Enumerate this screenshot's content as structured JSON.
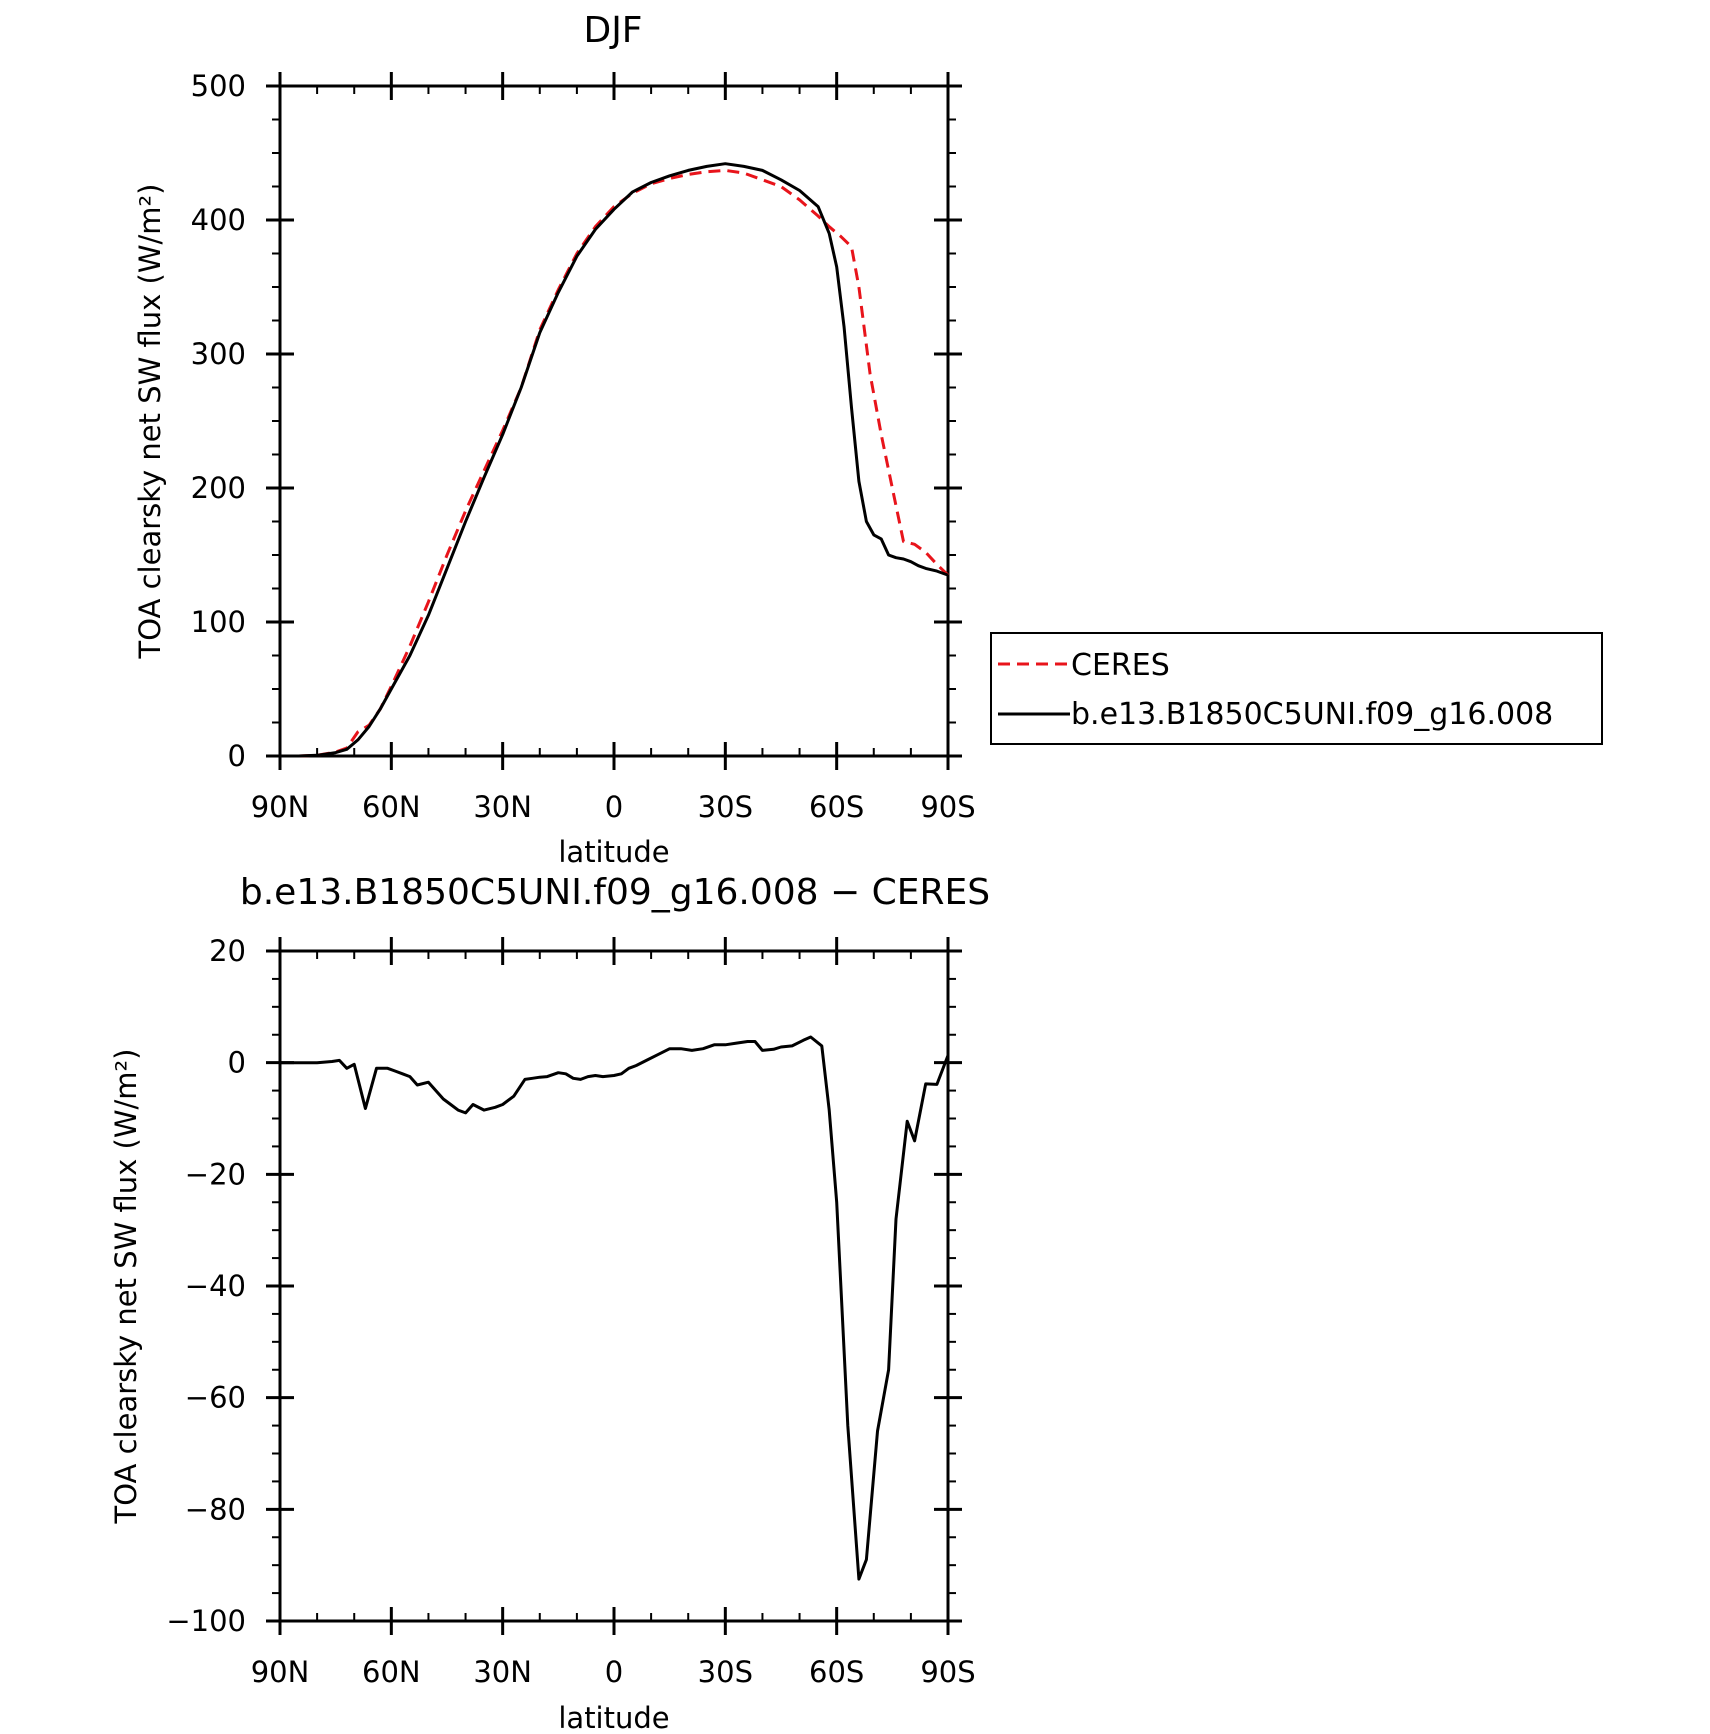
{
  "chart_data": [
    {
      "type": "line",
      "title": "DJF",
      "xlabel": "latitude",
      "ylabel": "TOA clearsky net SW flux (W/m²)",
      "xlim": [
        90,
        -90
      ],
      "ylim": [
        0,
        500
      ],
      "x_ticks": [
        90,
        60,
        30,
        0,
        -30,
        -60,
        -90
      ],
      "x_tick_labels": [
        "90N",
        "60N",
        "30N",
        "0",
        "30S",
        "60S",
        "90S"
      ],
      "y_ticks": [
        0,
        100,
        200,
        300,
        400,
        500
      ],
      "y_tick_labels": [
        "0",
        "100",
        "200",
        "300",
        "400",
        "500"
      ],
      "grid": false,
      "legend": "right",
      "series": [
        {
          "name": "CERES",
          "color": "#e8141b",
          "dash": "dashed",
          "x": [
            90,
            85,
            80,
            75,
            72,
            69,
            66,
            63,
            60,
            55,
            50,
            45,
            40,
            35,
            30,
            25,
            20,
            15,
            10,
            5,
            0,
            -5,
            -10,
            -15,
            -20,
            -25,
            -30,
            -35,
            -40,
            -45,
            -50,
            -55,
            -58,
            -61,
            -64,
            -66,
            -69,
            -72,
            -75,
            -78,
            -81,
            -84,
            -87,
            -90
          ],
          "y": [
            0,
            0,
            0.5,
            3,
            6,
            18,
            23,
            35,
            52,
            82,
            115,
            150,
            183,
            213,
            243,
            275,
            318,
            348,
            375,
            395,
            410,
            420,
            427,
            431,
            434,
            436,
            437,
            435,
            430,
            425,
            415,
            403,
            395,
            388,
            380,
            350,
            285,
            240,
            200,
            160,
            158,
            152,
            143,
            135
          ]
        },
        {
          "name": "b.e13.B1850C5UNI.f09_g16.008",
          "color": "#000000",
          "dash": "solid",
          "x": [
            90,
            85,
            80,
            75,
            72,
            69,
            66,
            63,
            60,
            55,
            50,
            45,
            40,
            35,
            30,
            25,
            20,
            15,
            10,
            5,
            0,
            -5,
            -10,
            -15,
            -20,
            -25,
            -30,
            -35,
            -40,
            -45,
            -50,
            -55,
            -58,
            -60,
            -62,
            -64,
            -66,
            -68,
            -70,
            -72,
            -74,
            -76,
            -78,
            -80,
            -82,
            -84,
            -87,
            -90
          ],
          "y": [
            0,
            0,
            0.5,
            2.5,
            5,
            12,
            22,
            35,
            50,
            75,
            105,
            140,
            175,
            208,
            240,
            275,
            316,
            346,
            373,
            393,
            408,
            421,
            428,
            433,
            437,
            440,
            442,
            440,
            437,
            430,
            422,
            410,
            390,
            365,
            320,
            260,
            205,
            175,
            165,
            162,
            150,
            148,
            147,
            145,
            142,
            140,
            138,
            135
          ]
        }
      ]
    },
    {
      "type": "line",
      "title": "b.e13.B1850C5UNI.f09_g16.008 − CERES",
      "xlabel": "latitude",
      "ylabel": "TOA clearsky net SW flux (W/m²)",
      "xlim": [
        90,
        -90
      ],
      "ylim": [
        -100,
        20
      ],
      "x_ticks": [
        90,
        60,
        30,
        0,
        -30,
        -60,
        -90
      ],
      "x_tick_labels": [
        "90N",
        "60N",
        "30N",
        "0",
        "30S",
        "60S",
        "90S"
      ],
      "y_ticks": [
        -100,
        -80,
        -60,
        -40,
        -20,
        0,
        20
      ],
      "y_tick_labels": [
        "−100",
        "−80",
        "−60",
        "−40",
        "−20",
        "0",
        "20"
      ],
      "grid": false,
      "series": [
        {
          "color": "#000000",
          "dash": "solid",
          "x": [
            90,
            85,
            80,
            76,
            74,
            72,
            70,
            67,
            64,
            61,
            59,
            57,
            55,
            53,
            50,
            46,
            44,
            42,
            40,
            38,
            35,
            32,
            30,
            27,
            24,
            22,
            20,
            18,
            15,
            13,
            11,
            9,
            7,
            5,
            3,
            0,
            -2,
            -4,
            -6,
            -9,
            -12,
            -15,
            -18,
            -21,
            -24,
            -27,
            -30,
            -33,
            -36,
            -38,
            -40,
            -43,
            -45,
            -48,
            -51,
            -53,
            -56,
            -58,
            -60,
            -63,
            -66,
            -68,
            -71,
            -74,
            -76,
            -79,
            -81,
            -84,
            -87,
            -90
          ],
          "y": [
            0,
            0,
            0,
            0.2,
            0.4,
            -1,
            -0.3,
            -8.2,
            -1,
            -1,
            -1.5,
            -2,
            -2.5,
            -4,
            -3.5,
            -6.5,
            -7.5,
            -8.5,
            -9,
            -7.5,
            -8.5,
            -8,
            -7.5,
            -6,
            -3,
            -2.8,
            -2.6,
            -2.5,
            -1.8,
            -2,
            -2.8,
            -3,
            -2.5,
            -2.3,
            -2.5,
            -2.3,
            -2,
            -1,
            -0.5,
            0.5,
            1.5,
            2.5,
            2.5,
            2.2,
            2.5,
            3.2,
            3.2,
            3.5,
            3.8,
            3.8,
            2.2,
            2.4,
            2.8,
            3,
            4,
            4.6,
            3,
            -8.5,
            -25,
            -65,
            -92.5,
            -89,
            -66,
            -55,
            -28,
            -10.5,
            -14,
            -3.8,
            -3.9,
            1.3
          ]
        }
      ]
    }
  ]
}
